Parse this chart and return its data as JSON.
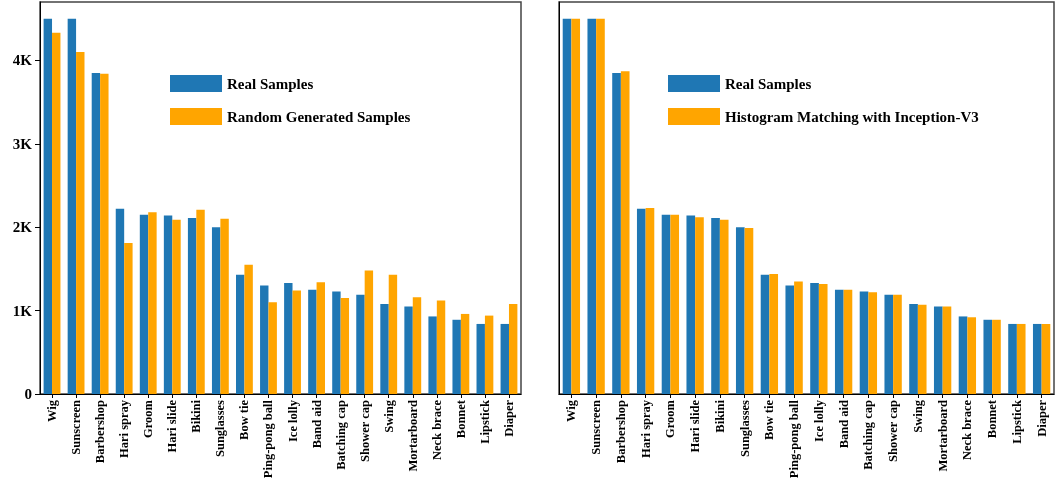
{
  "chart_data": [
    {
      "type": "bar",
      "categories": [
        "Wig",
        "Sunscreen",
        "Barbershop",
        "Hari spray",
        "Groom",
        "Hari slide",
        "Bikini",
        "Sunglasses",
        "Bow tie",
        "Ping-pong ball",
        "Ice lolly",
        "Band aid",
        "Batching cap",
        "Shower cap",
        "Swing",
        "Mortarboard",
        "Neck brace",
        "Bonnet",
        "Lipstick",
        "Diaper"
      ],
      "series": [
        {
          "name": "Real Samples",
          "color": "#1f77b4",
          "values": [
            4500,
            4500,
            3850,
            2220,
            2150,
            2140,
            2110,
            2000,
            1430,
            1300,
            1330,
            1250,
            1230,
            1190,
            1080,
            1050,
            930,
            890,
            840,
            840
          ]
        },
        {
          "name": "Random Generated Samples",
          "color": "#ffa500",
          "values": [
            4330,
            4100,
            3840,
            1810,
            2180,
            2090,
            2210,
            2100,
            1550,
            1100,
            1240,
            1340,
            1150,
            1480,
            1430,
            1160,
            1120,
            960,
            940,
            1080
          ]
        }
      ],
      "ylim": [
        0,
        4700
      ],
      "yticks": [
        0,
        {
          "value": 1000,
          "label": "1K"
        },
        {
          "value": 2000,
          "label": "2K"
        },
        {
          "value": 3000,
          "label": "3K"
        },
        {
          "value": 4000,
          "label": "4K"
        }
      ],
      "legend": "top right",
      "grid": false
    },
    {
      "type": "bar",
      "categories": [
        "Wig",
        "Sunscreen",
        "Barbershop",
        "Hari spray",
        "Groom",
        "Hari slide",
        "Bikini",
        "Sunglasses",
        "Bow tie",
        "Ping-pong ball",
        "Ice lolly",
        "Band aid",
        "Batching cap",
        "Shower cap",
        "Swing",
        "Mortarboard",
        "Neck brace",
        "Bonnet",
        "Lipstick",
        "Diaper"
      ],
      "series": [
        {
          "name": "Real Samples",
          "color": "#1f77b4",
          "values": [
            4500,
            4500,
            3850,
            2220,
            2150,
            2140,
            2110,
            2000,
            1430,
            1300,
            1330,
            1250,
            1230,
            1190,
            1080,
            1050,
            930,
            890,
            840,
            840
          ]
        },
        {
          "name": "Histogram Matching with Inception-V3",
          "color": "#ffa500",
          "values": [
            4500,
            4500,
            3870,
            2230,
            2150,
            2120,
            2090,
            1990,
            1440,
            1350,
            1320,
            1250,
            1220,
            1190,
            1070,
            1050,
            920,
            890,
            840,
            840
          ]
        }
      ],
      "ylim": [
        0,
        4700
      ],
      "legend": "top right",
      "grid": false,
      "tick_labels": "x"
    }
  ]
}
